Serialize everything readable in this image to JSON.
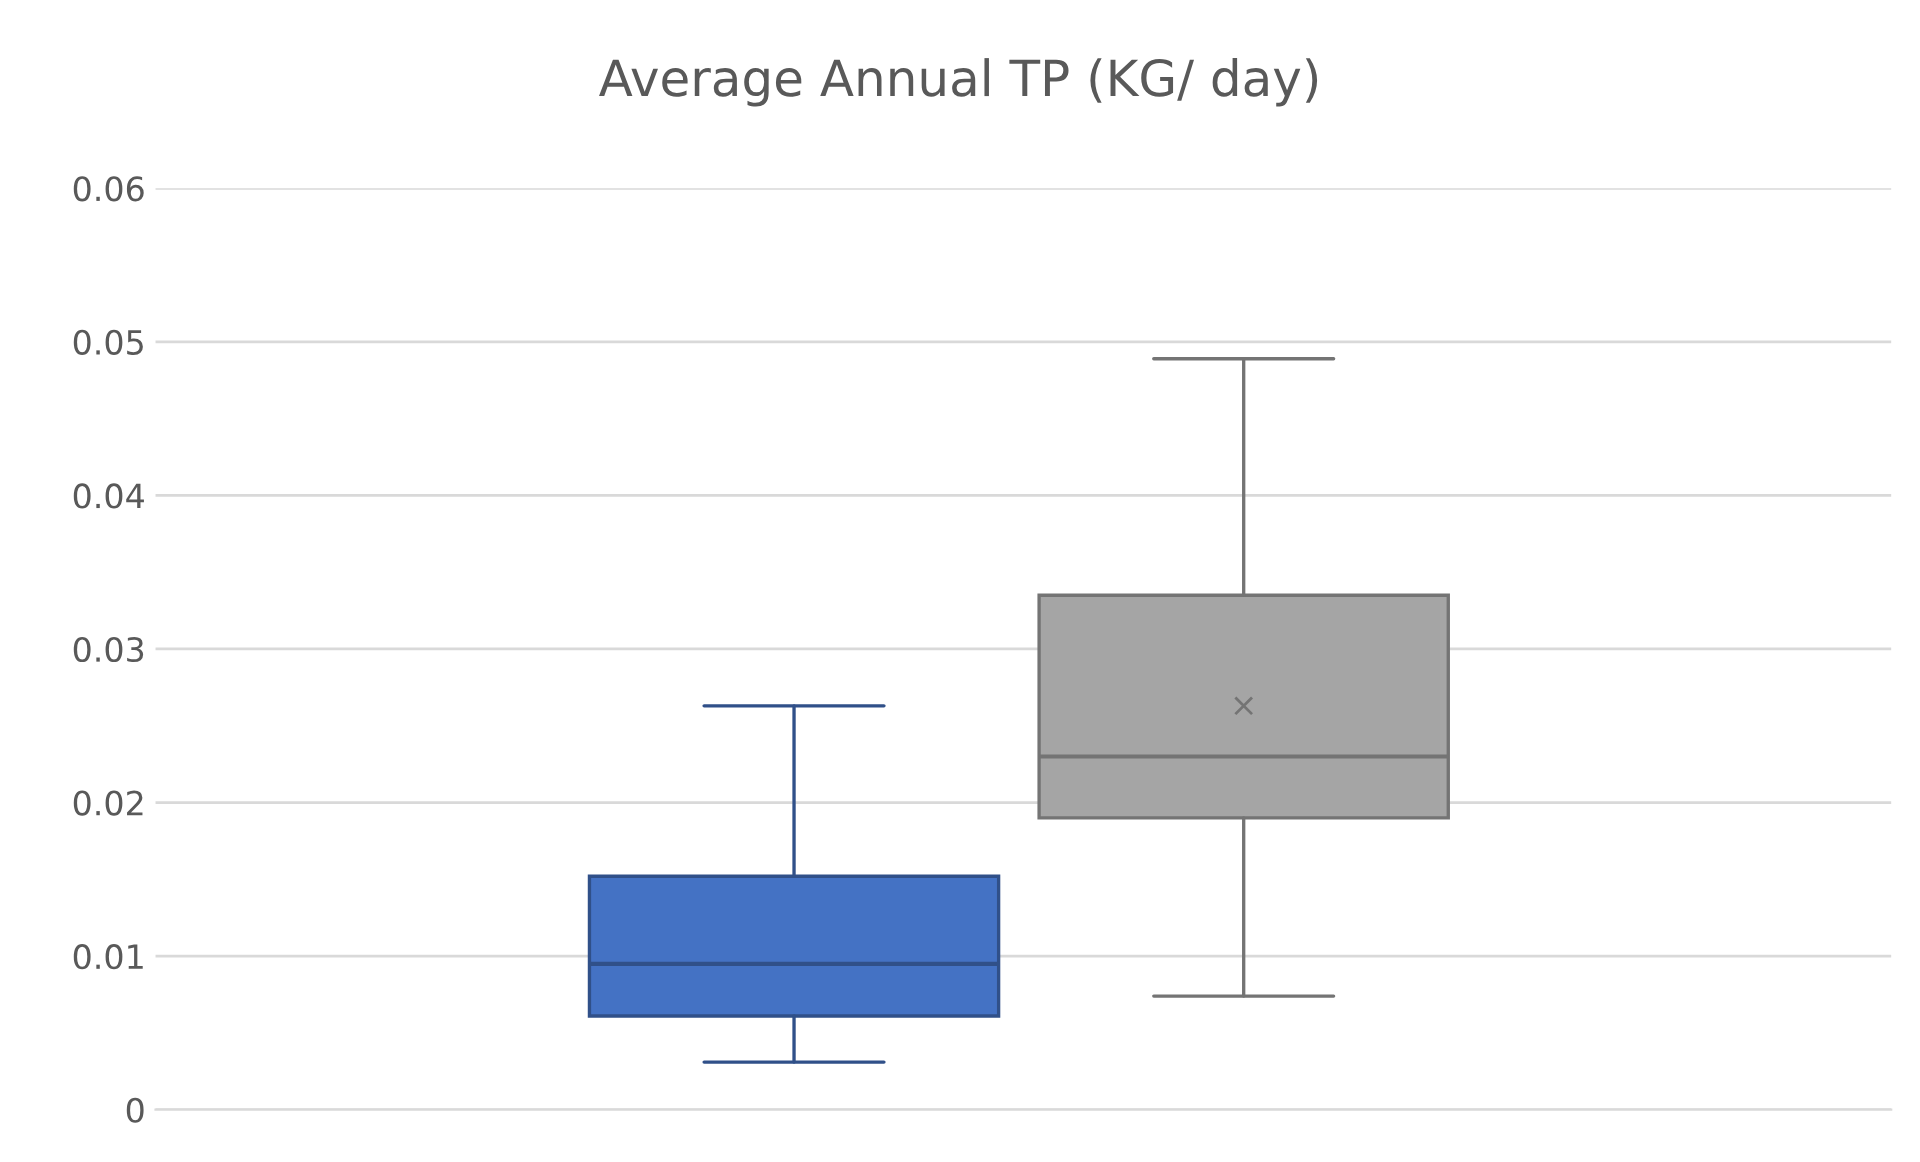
{
  "chart_data": {
    "type": "box",
    "title": "Average Annual TP (KG/ day)",
    "categories": [
      null,
      null
    ],
    "boxes": [
      {
        "low": 0.0031,
        "q1": 0.0061,
        "median": 0.0095,
        "q3": 0.0152,
        "high": 0.0263
      },
      {
        "low": 0.0074,
        "q1": 0.019,
        "median": 0.023,
        "q3": 0.0335,
        "high": 0.0489,
        "mean": 0.0263
      }
    ],
    "colors": [
      "#4472c4",
      "#a5a5a5"
    ],
    "ylim": [
      0,
      0.06
    ],
    "yticks": [
      {
        "value": 0,
        "label": "0"
      },
      0.01,
      0.02,
      0.03,
      0.04,
      0.05,
      0.06
    ],
    "grid": "y",
    "tick_labels": "y"
  }
}
